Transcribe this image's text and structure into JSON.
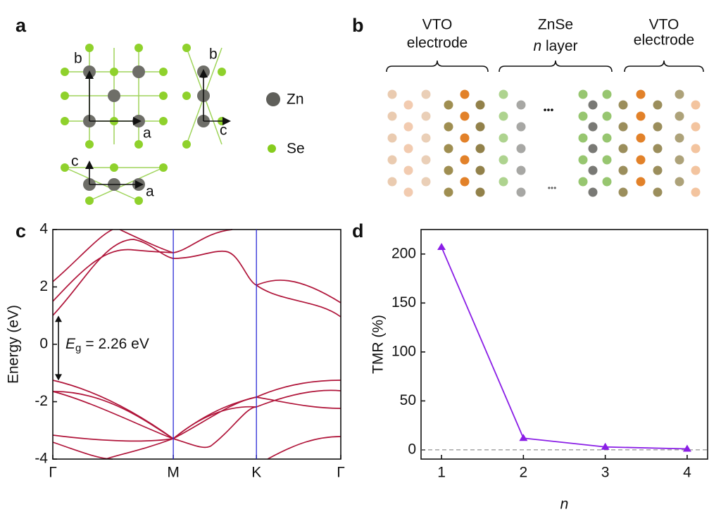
{
  "figure": {
    "panel_labels": [
      "a",
      "b",
      "c",
      "d"
    ],
    "structure": {
      "axes_top": [
        "b",
        "a"
      ],
      "axes_side": [
        "b",
        "c"
      ],
      "axes_bottom": [
        "c",
        "a"
      ],
      "legend": [
        "Zn",
        "Se"
      ]
    },
    "junction": {
      "left": [
        "VTO",
        "electrode"
      ],
      "middle": {
        "line1": "ZnSe",
        "italic": "n",
        "rest": "layer"
      },
      "right": [
        "VTO",
        "electrode"
      ],
      "ellipsis": [
        "•••",
        "•••"
      ]
    }
  },
  "chart_data": [
    {
      "type": "bands",
      "ylabel": "Energy (eV)",
      "ylim": [
        -4,
        4
      ],
      "yticks": [
        -4,
        -2,
        0,
        2,
        4
      ],
      "xlim": [
        0,
        2.39
      ],
      "xticks": [
        {
          "value": 0,
          "label": "Γ"
        },
        {
          "value": 1,
          "label": "M"
        },
        {
          "value": 1.69,
          "label": "K"
        },
        {
          "value": 2.39,
          "label": "Γ"
        }
      ],
      "color": "#b0153a",
      "line_color": "#2b2bd6",
      "gap": [
        -1.26,
        1.0
      ],
      "annotation": {
        "symbol": "E",
        "subscript": "g",
        "text": "= 2.26 eV"
      }
    },
    {
      "type": "line",
      "xlabel": "n",
      "ylabel": "TMR (%)",
      "x": [
        1,
        2,
        3,
        4
      ],
      "values": [
        207,
        12,
        3,
        1
      ],
      "color": "#8a1ee6",
      "xlim": [
        0.75,
        4.25
      ],
      "xticks": [
        1,
        2,
        3,
        4
      ],
      "ylim": [
        -9.4,
        225
      ],
      "yticks": [
        0,
        50,
        100,
        150,
        200
      ],
      "zero_line": true
    }
  ]
}
